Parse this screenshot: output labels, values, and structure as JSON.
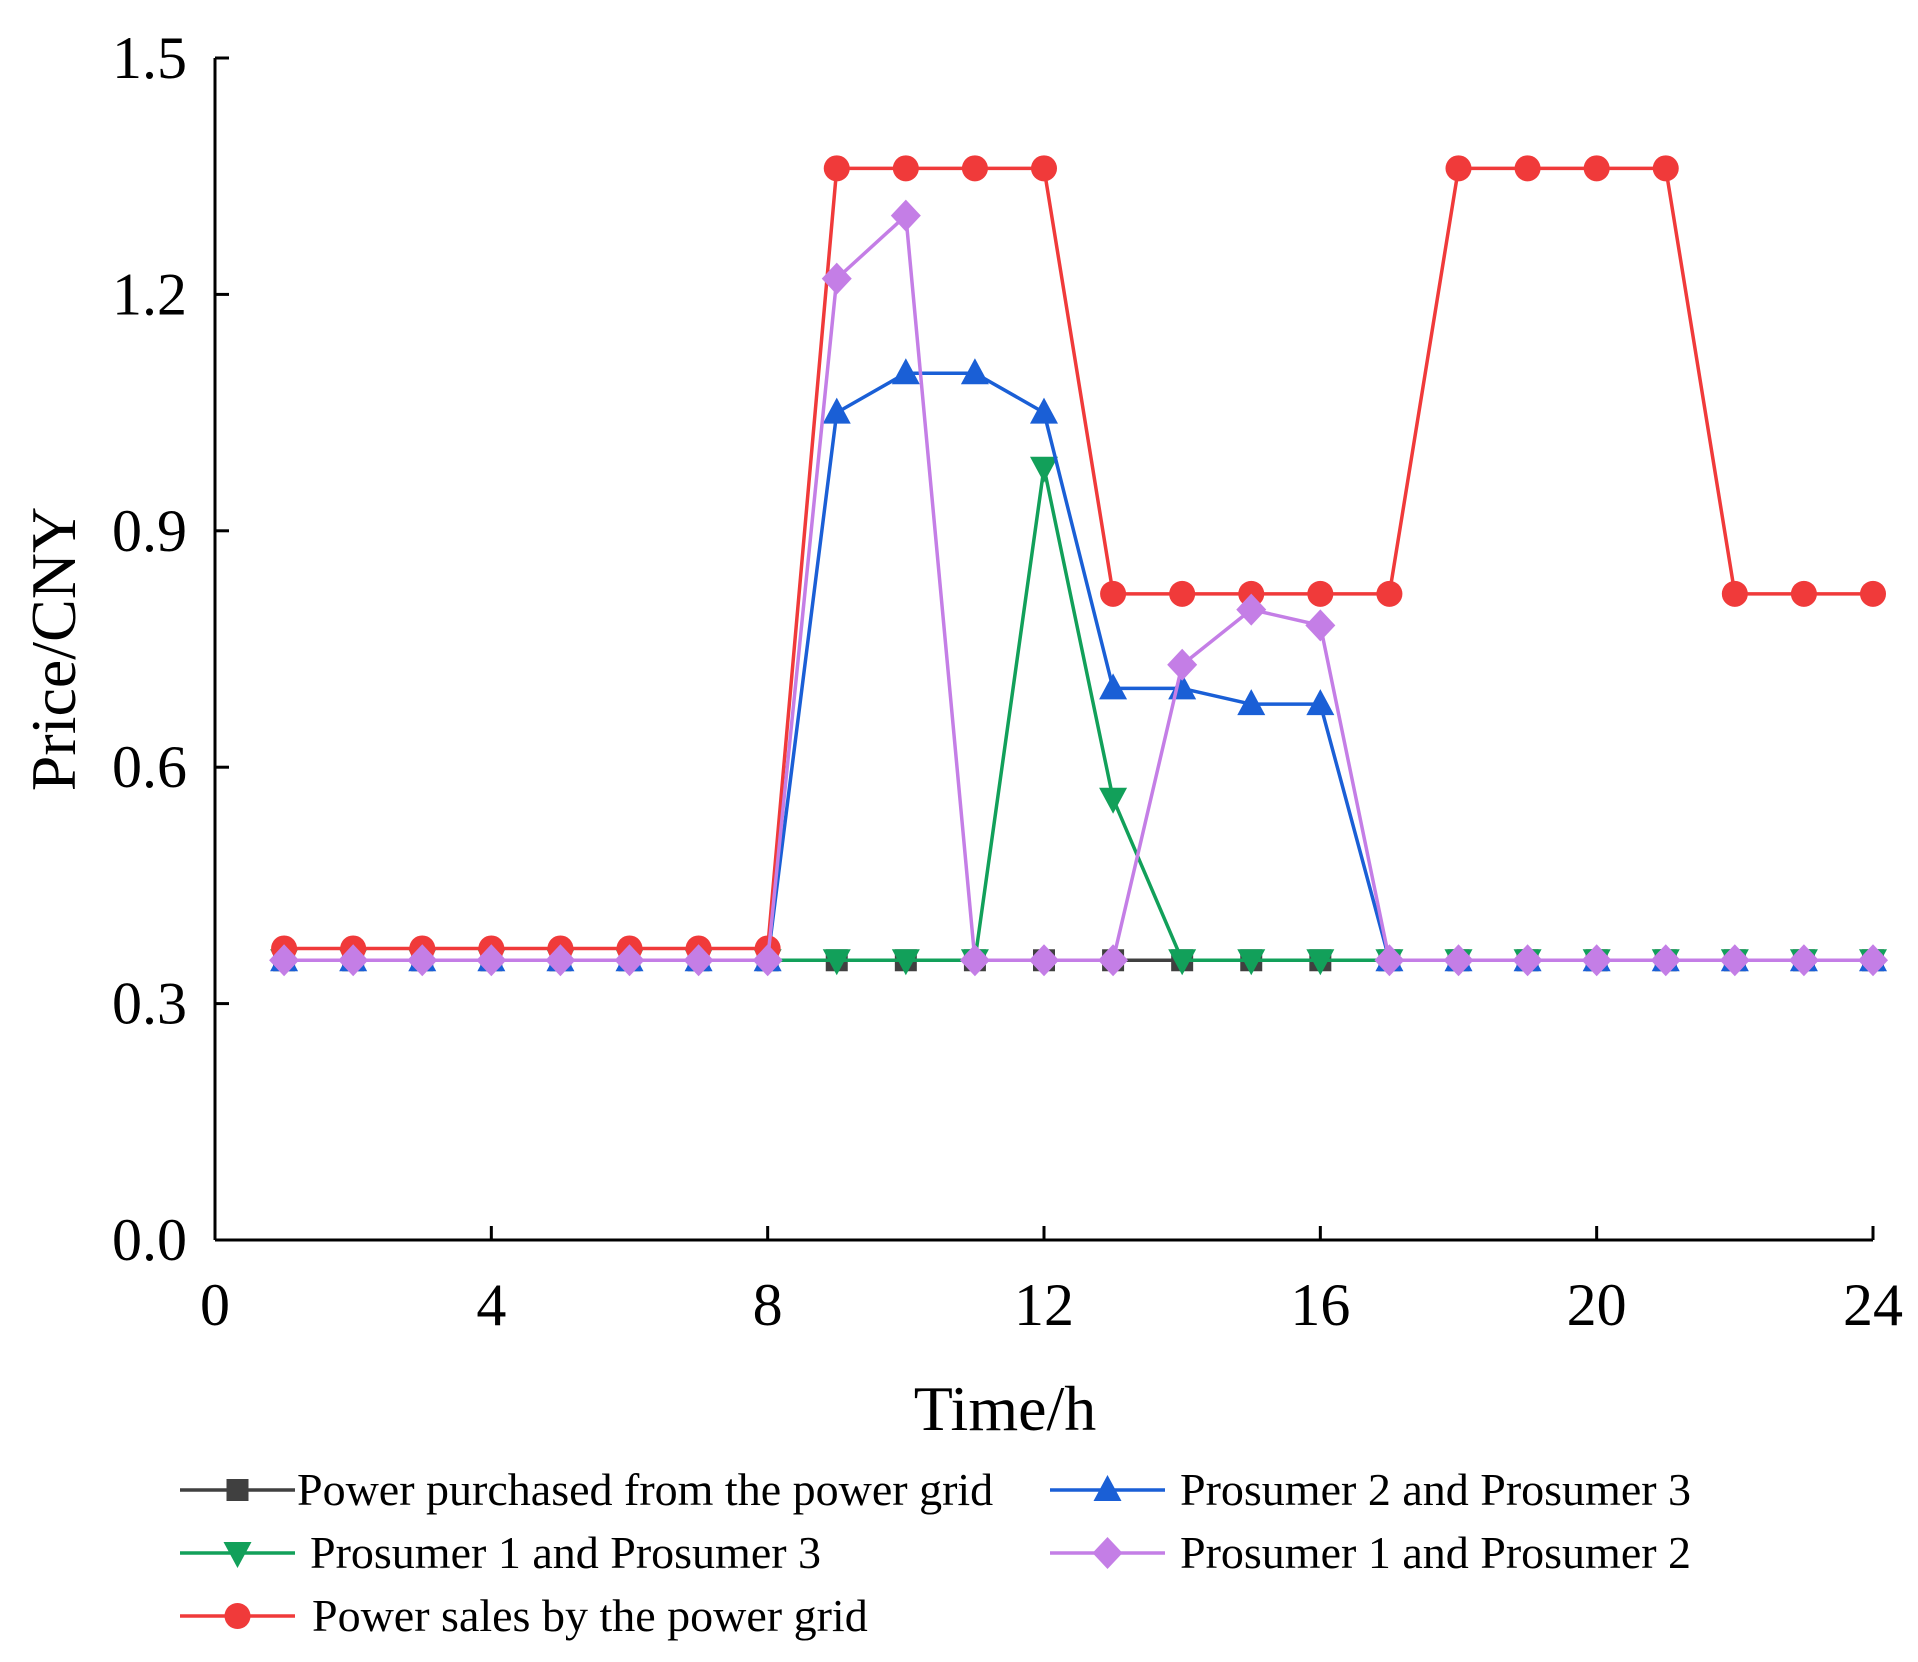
{
  "chart_data": {
    "type": "line",
    "title": "",
    "xlabel": "Time/h",
    "ylabel": "Price/CNY",
    "xlim": [
      0,
      24
    ],
    "ylim": [
      0,
      1.5
    ],
    "xticks": [
      0,
      4,
      8,
      12,
      16,
      20,
      24
    ],
    "yticks": [
      0.0,
      0.3,
      0.6,
      0.9,
      1.2,
      1.5
    ],
    "xtick_labels": [
      "0",
      "4",
      "8",
      "12",
      "16",
      "20",
      "24"
    ],
    "ytick_labels": [
      "0.0",
      "0.3",
      "0.6",
      "0.9",
      "1.2",
      "1.5"
    ],
    "grid": false,
    "legend_position": "bottom",
    "x": [
      1,
      2,
      3,
      4,
      5,
      6,
      7,
      8,
      9,
      10,
      11,
      12,
      13,
      14,
      15,
      16,
      17,
      18,
      19,
      20,
      21,
      22,
      23,
      24
    ],
    "series": [
      {
        "name": "Power purchased from the power grid",
        "color": "#404040",
        "marker": "square",
        "values": [
          0.355,
          0.355,
          0.355,
          0.355,
          0.355,
          0.355,
          0.355,
          0.355,
          0.355,
          0.355,
          0.355,
          0.355,
          0.355,
          0.355,
          0.355,
          0.355,
          0.355,
          0.355,
          0.355,
          0.355,
          0.355,
          0.355,
          0.355,
          0.355
        ]
      },
      {
        "name": "Prosumer 2 and Prosumer 3",
        "color": "#1a5fd6",
        "marker": "triangle-up",
        "values": [
          0.355,
          0.355,
          0.355,
          0.355,
          0.355,
          0.355,
          0.355,
          0.355,
          1.05,
          1.1,
          1.1,
          1.05,
          0.7,
          0.7,
          0.68,
          0.68,
          0.355,
          0.355,
          0.355,
          0.355,
          0.355,
          0.355,
          0.355,
          0.355
        ]
      },
      {
        "name": "Prosumer 1 and Prosumer 3",
        "color": "#12a05a",
        "marker": "triangle-down",
        "values": [
          0.355,
          0.355,
          0.355,
          0.355,
          0.355,
          0.355,
          0.355,
          0.355,
          0.355,
          0.355,
          0.355,
          0.98,
          0.56,
          0.355,
          0.355,
          0.355,
          0.355,
          0.355,
          0.355,
          0.355,
          0.355,
          0.355,
          0.355,
          0.355
        ]
      },
      {
        "name": "Prosumer 1 and Prosumer 2",
        "color": "#c47ee6",
        "marker": "diamond",
        "values": [
          0.355,
          0.355,
          0.355,
          0.355,
          0.355,
          0.355,
          0.355,
          0.355,
          1.22,
          1.3,
          0.355,
          0.355,
          0.355,
          0.73,
          0.8,
          0.78,
          0.355,
          0.355,
          0.355,
          0.355,
          0.355,
          0.355,
          0.355,
          0.355
        ]
      },
      {
        "name": "Power sales by the power grid",
        "color": "#f03a3a",
        "marker": "circle",
        "values": [
          0.37,
          0.37,
          0.37,
          0.37,
          0.37,
          0.37,
          0.37,
          0.37,
          1.36,
          1.36,
          1.36,
          1.36,
          0.82,
          0.82,
          0.82,
          0.82,
          0.82,
          1.36,
          1.36,
          1.36,
          1.36,
          0.82,
          0.82,
          0.82
        ]
      }
    ]
  }
}
